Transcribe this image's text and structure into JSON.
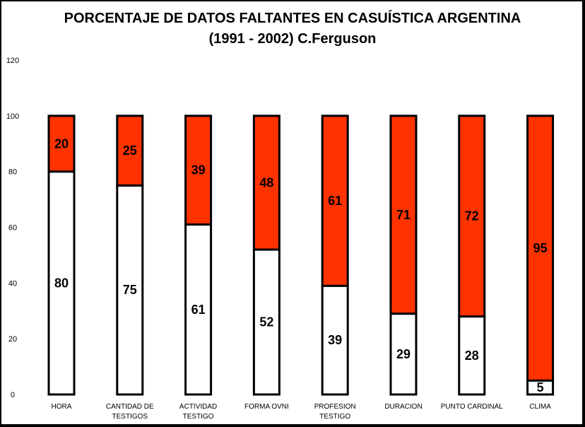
{
  "chart_data": {
    "type": "bar",
    "stacked": true,
    "title": "PORCENTAJE DE DATOS FALTANTES EN CASUÍSTICA ARGENTINA",
    "subtitle": "(1991 - 2002) C.Ferguson",
    "categories": [
      [
        "HORA"
      ],
      [
        "CANTIDAD DE",
        "TESTIGOS"
      ],
      [
        "ACTIVIDAD",
        "TESTIGO"
      ],
      [
        "FORMA OVNI"
      ],
      [
        "PROFESION",
        "TESTIGO"
      ],
      [
        "DURACION"
      ],
      [
        "PUNTO CARDINAL"
      ],
      [
        "CLIMA"
      ]
    ],
    "series": [
      {
        "values": [
          80,
          75,
          61,
          52,
          39,
          29,
          28,
          5
        ],
        "color": "#ffffff"
      },
      {
        "values": [
          20,
          25,
          39,
          48,
          61,
          71,
          72,
          95
        ],
        "color": "#ff3300"
      }
    ],
    "ylim": [
      0,
      120
    ],
    "yticks": [
      "0",
      "20",
      "40",
      "60",
      "80",
      "100",
      "120"
    ],
    "grid": false,
    "legend": "none"
  }
}
